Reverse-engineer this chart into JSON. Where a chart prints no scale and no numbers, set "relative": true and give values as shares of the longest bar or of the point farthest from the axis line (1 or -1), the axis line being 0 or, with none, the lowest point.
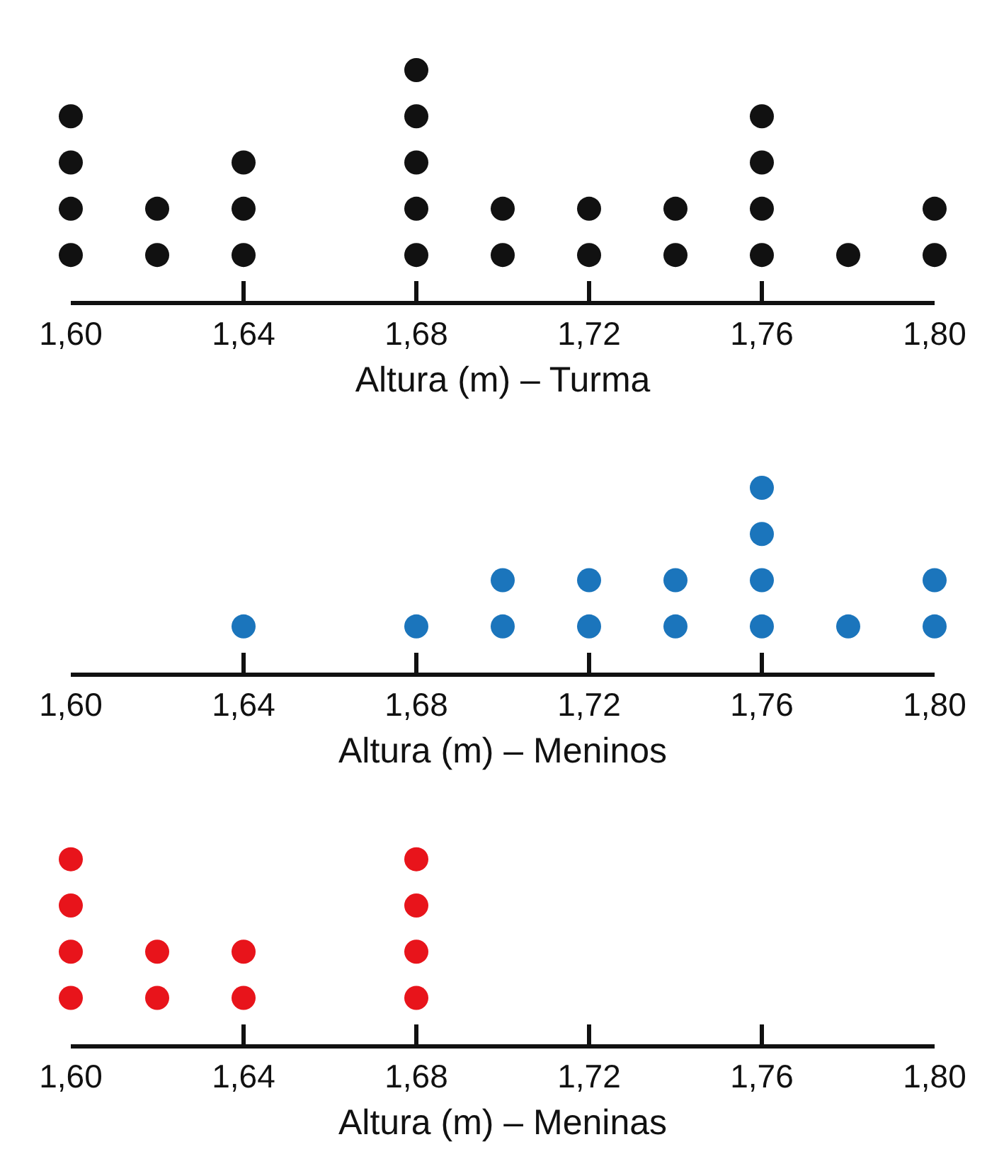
{
  "chart_data": [
    {
      "type": "scatter",
      "xlabel": "Altura (m) – Turma",
      "relative": true,
      "marker": "circle",
      "tick_labels": "x",
      "xlim": [
        1.6,
        1.8
      ],
      "xticks": [
        {
          "value": 1.6,
          "label": "1,60"
        },
        {
          "value": 1.64,
          "label": "1,64"
        },
        {
          "value": 1.68,
          "label": "1,68"
        },
        {
          "value": 1.72,
          "label": "1,72"
        },
        {
          "value": 1.76,
          "label": "1,76"
        },
        {
          "value": 1.8,
          "label": "1,80"
        }
      ],
      "series": [
        {
          "color": "#111111",
          "x": [
            1.6,
            1.6,
            1.6,
            1.6,
            1.62,
            1.62,
            1.64,
            1.64,
            1.64,
            1.68,
            1.68,
            1.68,
            1.68,
            1.68,
            1.7,
            1.7,
            1.72,
            1.72,
            1.74,
            1.74,
            1.76,
            1.76,
            1.76,
            1.76,
            1.78,
            1.8,
            1.8
          ],
          "values": [
            0.2,
            0.4,
            0.6,
            0.8,
            0.2,
            0.4,
            0.2,
            0.4,
            0.6,
            0.2,
            0.4,
            0.6,
            0.8,
            1,
            0.2,
            0.4,
            0.2,
            0.4,
            0.2,
            0.4,
            0.2,
            0.4,
            0.6,
            0.8,
            0.2,
            0.2,
            0.4
          ]
        }
      ]
    },
    {
      "type": "scatter",
      "xlabel": "Altura (m) – Meninos",
      "relative": true,
      "marker": "circle",
      "tick_labels": "x",
      "xlim": [
        1.6,
        1.8
      ],
      "xticks": [
        {
          "value": 1.6,
          "label": "1,60"
        },
        {
          "value": 1.64,
          "label": "1,64"
        },
        {
          "value": 1.68,
          "label": "1,68"
        },
        {
          "value": 1.72,
          "label": "1,72"
        },
        {
          "value": 1.76,
          "label": "1,76"
        },
        {
          "value": 1.8,
          "label": "1,80"
        }
      ],
      "series": [
        {
          "color": "#1b75bc",
          "x": [
            1.64,
            1.68,
            1.7,
            1.7,
            1.72,
            1.72,
            1.74,
            1.74,
            1.76,
            1.76,
            1.76,
            1.76,
            1.78,
            1.8,
            1.8
          ],
          "values": [
            0.25,
            0.25,
            0.25,
            0.5,
            0.25,
            0.5,
            0.25,
            0.5,
            0.25,
            0.5,
            0.75,
            1,
            0.25,
            0.25,
            0.5
          ]
        }
      ]
    },
    {
      "type": "scatter",
      "xlabel": "Altura (m) – Meninas",
      "relative": true,
      "marker": "circle",
      "tick_labels": "x",
      "xlim": [
        1.6,
        1.8
      ],
      "xticks": [
        {
          "value": 1.6,
          "label": "1,60"
        },
        {
          "value": 1.64,
          "label": "1,64"
        },
        {
          "value": 1.68,
          "label": "1,68"
        },
        {
          "value": 1.72,
          "label": "1,72"
        },
        {
          "value": 1.76,
          "label": "1,76"
        },
        {
          "value": 1.8,
          "label": "1,80"
        }
      ],
      "series": [
        {
          "color": "#e8141b",
          "x": [
            1.6,
            1.6,
            1.6,
            1.6,
            1.62,
            1.62,
            1.64,
            1.64,
            1.68,
            1.68,
            1.68,
            1.68
          ],
          "values": [
            0.25,
            0.5,
            0.75,
            1,
            0.25,
            0.5,
            0.25,
            0.5,
            0.25,
            0.5,
            0.75,
            1
          ]
        }
      ]
    }
  ]
}
